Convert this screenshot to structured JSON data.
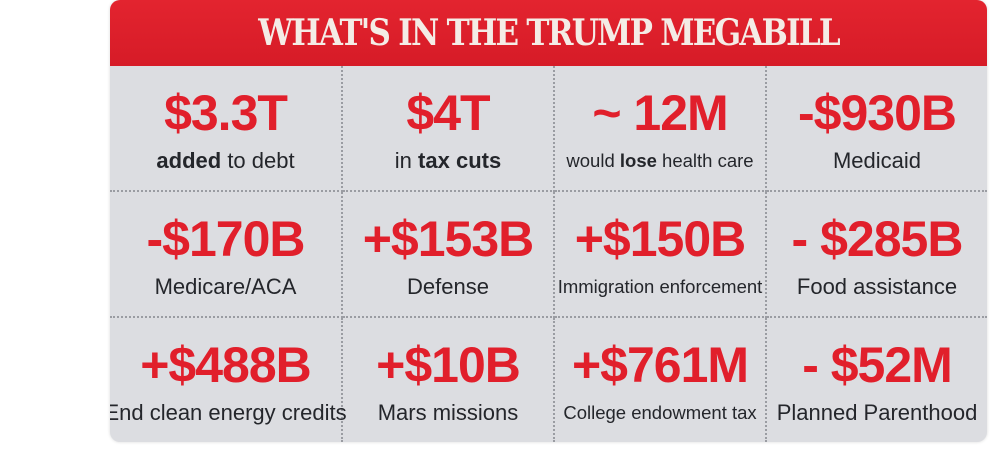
{
  "title": "WHAT'S IN THE TRUMP MEGABILL",
  "colors": {
    "header_red": "#d61b27",
    "value_red": "#e11f2b",
    "panel_gray": "#dcdde1",
    "title_cream": "#f4ece6",
    "label_dark": "#24262b"
  },
  "items": [
    {
      "value": "$3.3T",
      "label_parts": [
        {
          "text": "added",
          "bold": true
        },
        {
          "text": " to debt",
          "bold": false
        }
      ]
    },
    {
      "value": "$4T",
      "label_parts": [
        {
          "text": "in ",
          "bold": false
        },
        {
          "text": "tax cuts",
          "bold": true
        }
      ]
    },
    {
      "value": "~ 12M",
      "label_parts": [
        {
          "text": "would ",
          "bold": false
        },
        {
          "text": "lose",
          "bold": true
        },
        {
          "text": " health care",
          "bold": false
        }
      ]
    },
    {
      "value": "-$930B",
      "label_parts": [
        {
          "text": "Medicaid",
          "bold": false
        }
      ]
    },
    {
      "value": "-$170B",
      "label_parts": [
        {
          "text": "Medicare/ACA",
          "bold": false
        }
      ]
    },
    {
      "value": "+$153B",
      "label_parts": [
        {
          "text": "Defense",
          "bold": false
        }
      ]
    },
    {
      "value": "+$150B",
      "label_parts": [
        {
          "text": "Immigration enforcement",
          "bold": false
        }
      ]
    },
    {
      "value": "- $285B",
      "label_parts": [
        {
          "text": "Food assistance",
          "bold": false
        }
      ]
    },
    {
      "value": "+$488B",
      "label_parts": [
        {
          "text": "End clean energy credits",
          "bold": false
        }
      ]
    },
    {
      "value": "+$10B",
      "label_parts": [
        {
          "text": "Mars missions",
          "bold": false
        }
      ]
    },
    {
      "value": "+$761M",
      "label_parts": [
        {
          "text": "College endowment tax",
          "bold": false
        }
      ]
    },
    {
      "value": "- $52M",
      "label_parts": [
        {
          "text": "Planned Parenthood",
          "bold": false
        }
      ]
    }
  ]
}
